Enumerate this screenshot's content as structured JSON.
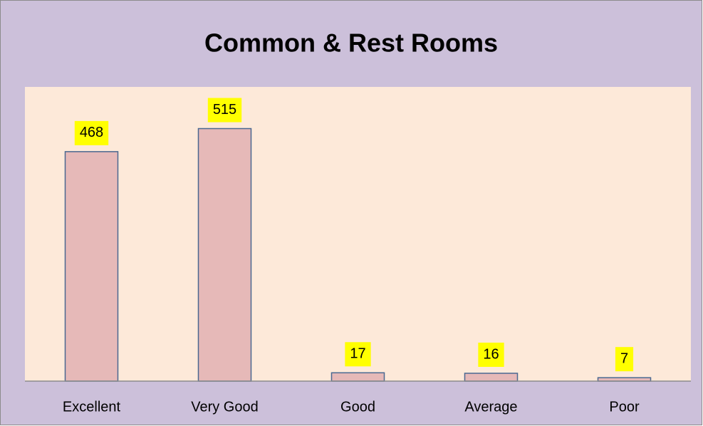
{
  "chart_data": {
    "type": "bar",
    "title": "Common & Rest Rooms",
    "categories": [
      "Excellent",
      "Very Good",
      "Good",
      "Average",
      "Poor"
    ],
    "values": [
      468,
      515,
      17,
      16,
      7
    ],
    "color": "#e6b9b8",
    "edge_color": "#4a6891",
    "label_background": "#ffff00",
    "ylim": [
      0,
      600
    ],
    "grid": false
  }
}
